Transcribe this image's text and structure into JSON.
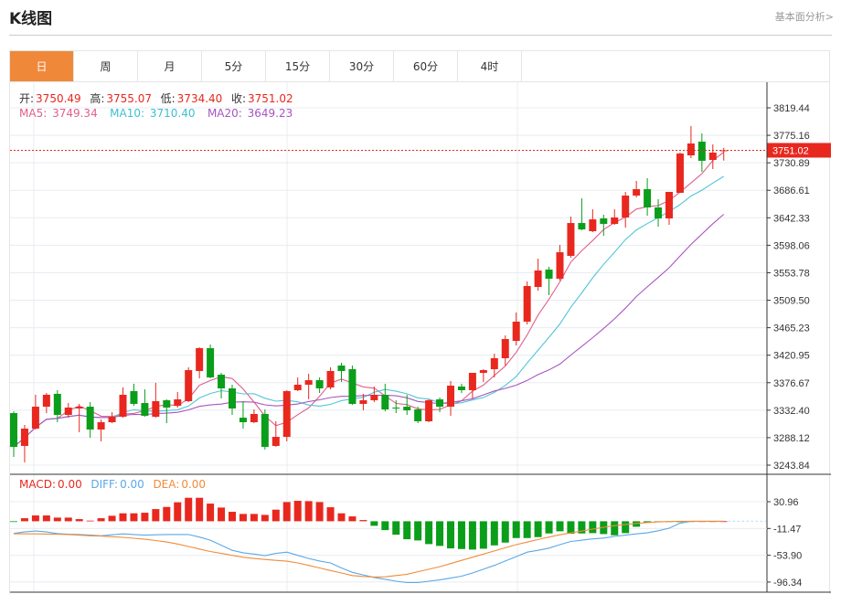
{
  "header": {
    "title": "K线图",
    "fundamental_link": "基本面分析>"
  },
  "tabs": [
    {
      "label": "日",
      "active": true
    },
    {
      "label": "周"
    },
    {
      "label": "月"
    },
    {
      "label": "5分"
    },
    {
      "label": "15分"
    },
    {
      "label": "30分"
    },
    {
      "label": "60分"
    },
    {
      "label": "4时"
    }
  ],
  "ohlc_info": {
    "open_label": "开:",
    "open": "3750.49",
    "high_label": "高:",
    "high": "3755.07",
    "low_label": "低:",
    "low": "3734.40",
    "close_label": "收:",
    "close": "3751.02"
  },
  "ma_info": {
    "ma5_label": "MA5:",
    "ma5": "3749.34",
    "ma10_label": "MA10:",
    "ma10": "3710.40",
    "ma20_label": "MA20:",
    "ma20": "3649.23"
  },
  "macd_info": {
    "macd_label": "MACD:",
    "macd": "0.00",
    "diff_label": "DIFF:",
    "diff": "0.00",
    "dea_label": "DEA:",
    "dea": "0.00"
  },
  "colors": {
    "up": "#e8281e",
    "down": "#0a9e1a",
    "ma5": "#e0608f",
    "ma10": "#4fc6d6",
    "ma20": "#a855c0",
    "diff": "#5aa8e8",
    "dea": "#f08c3a",
    "active_tab": "#f0883a"
  },
  "chart_data": [
    {
      "type": "candlestick",
      "y_ticks": [
        "3819.44",
        "3775.16",
        "3730.89",
        "3686.61",
        "3642.33",
        "3598.06",
        "3553.78",
        "3509.50",
        "3465.23",
        "3420.95",
        "3376.67",
        "3332.40",
        "3288.12",
        "3243.84"
      ],
      "ylim": [
        3243.84,
        3819.44
      ],
      "current_price": "3751.02",
      "ohlc": [
        [
          3327.7,
          3330.6,
          3257.1,
          3273.3
        ],
        [
          3274.8,
          3308.6,
          3248.3,
          3302.7
        ],
        [
          3302.7,
          3357.2,
          3301.2,
          3338.0
        ],
        [
          3338.0,
          3360.1,
          3327.7,
          3357.2
        ],
        [
          3358.7,
          3364.6,
          3313.0,
          3324.8
        ],
        [
          3324.8,
          3343.9,
          3320.3,
          3336.6
        ],
        [
          3335.1,
          3342.5,
          3296.8,
          3338.0
        ],
        [
          3338.0,
          3345.4,
          3288.0,
          3301.2
        ],
        [
          3301.2,
          3317.4,
          3282.1,
          3313.0
        ],
        [
          3313.0,
          3329.2,
          3311.5,
          3321.8
        ],
        [
          3321.8,
          3369.0,
          3320.3,
          3357.2
        ],
        [
          3363.1,
          3374.9,
          3339.5,
          3342.5
        ],
        [
          3343.9,
          3366.0,
          3321.8,
          3323.3
        ],
        [
          3321.8,
          3376.4,
          3320.3,
          3346.9
        ],
        [
          3348.4,
          3349.8,
          3311.5,
          3336.6
        ],
        [
          3339.5,
          3361.6,
          3336.6,
          3349.8
        ],
        [
          3346.9,
          3401.4,
          3345.4,
          3396.9
        ],
        [
          3395.5,
          3433.8,
          3383.7,
          3432.3
        ],
        [
          3432.3,
          3438.2,
          3383.7,
          3385.2
        ],
        [
          3389.6,
          3392.5,
          3351.3,
          3367.5
        ],
        [
          3367.5,
          3373.4,
          3324.8,
          3335.1
        ],
        [
          3320.3,
          3346.9,
          3302.7,
          3313.0
        ],
        [
          3313.0,
          3333.6,
          3311.5,
          3326.3
        ],
        [
          3326.3,
          3333.6,
          3268.9,
          3273.3
        ],
        [
          3274.8,
          3314.5,
          3273.3,
          3289.4
        ],
        [
          3289.4,
          3364.6,
          3282.1,
          3363.1
        ],
        [
          3364.6,
          3385.2,
          3363.1,
          3373.4
        ],
        [
          3373.4,
          3391.1,
          3349.8,
          3380.7
        ],
        [
          3380.7,
          3385.2,
          3360.1,
          3367.5
        ],
        [
          3369.0,
          3401.4,
          3366.0,
          3395.5
        ],
        [
          3404.3,
          3408.7,
          3377.8,
          3395.5
        ],
        [
          3398.4,
          3404.3,
          3341.0,
          3342.5
        ],
        [
          3342.5,
          3358.7,
          3332.1,
          3348.4
        ],
        [
          3348.4,
          3370.5,
          3345.4,
          3357.2
        ],
        [
          3357.2,
          3374.9,
          3330.6,
          3333.6
        ],
        [
          3336.6,
          3348.4,
          3327.7,
          3335.1
        ],
        [
          3338.0,
          3357.2,
          3324.8,
          3332.1
        ],
        [
          3333.6,
          3338.0,
          3311.5,
          3314.5
        ],
        [
          3314.5,
          3349.8,
          3313.0,
          3348.4
        ],
        [
          3349.8,
          3352.8,
          3329.2,
          3338.0
        ],
        [
          3338.0,
          3379.3,
          3323.3,
          3371.9
        ],
        [
          3370.5,
          3374.9,
          3360.1,
          3364.6
        ],
        [
          3364.6,
          3392.5,
          3351.3,
          3392.5
        ],
        [
          3392.5,
          3398.4,
          3377.8,
          3396.9
        ],
        [
          3398.4,
          3423.4,
          3385.2,
          3416.1
        ],
        [
          3416.1,
          3452.9,
          3404.3,
          3447.0
        ],
        [
          3444.0,
          3489.7,
          3436.7,
          3475.0
        ],
        [
          3475.0,
          3539.8,
          3470.5,
          3532.4
        ],
        [
          3530.9,
          3576.5,
          3525.0,
          3557.4
        ],
        [
          3558.9,
          3563.3,
          3517.7,
          3544.2
        ],
        [
          3544.2,
          3598.6,
          3541.2,
          3586.8
        ],
        [
          3581.0,
          3644.3,
          3578.0,
          3633.9
        ],
        [
          3633.9,
          3673.7,
          3622.2,
          3623.6
        ],
        [
          3620.7,
          3656.0,
          3619.2,
          3639.8
        ],
        [
          3641.3,
          3647.2,
          3613.3,
          3632.5
        ],
        [
          3632.5,
          3656.0,
          3631.0,
          3642.8
        ],
        [
          3642.8,
          3684.0,
          3626.6,
          3678.1
        ],
        [
          3678.1,
          3701.7,
          3675.2,
          3688.4
        ],
        [
          3688.4,
          3706.1,
          3645.7,
          3659.0
        ],
        [
          3659.0,
          3672.2,
          3628.0,
          3641.3
        ],
        [
          3641.3,
          3684.0,
          3631.0,
          3684.0
        ],
        [
          3682.5,
          3747.3,
          3682.5,
          3745.8
        ],
        [
          3742.9,
          3790.0,
          3738.5,
          3762.0
        ],
        [
          3765.0,
          3778.2,
          3716.4,
          3734.1
        ],
        [
          3735.5,
          3760.6,
          3720.8,
          3747.3
        ],
        [
          3750.49,
          3755.07,
          3734.4,
          3751.02
        ]
      ],
      "ma_periods": [
        5,
        10,
        20
      ]
    },
    {
      "type": "macd",
      "y_ticks": [
        "30.96",
        "-11.47",
        "-53.90",
        "-96.34"
      ],
      "ylim": [
        -105,
        45
      ],
      "histogram": [
        -0.3,
        4.8,
        9.2,
        9.2,
        5.8,
        5.8,
        3.4,
        1.0,
        4.8,
        8.7,
        12.6,
        12.6,
        13.5,
        19.3,
        22.7,
        30,
        37.2,
        37.2,
        28,
        21.7,
        15,
        11.6,
        11.6,
        10.1,
        18.4,
        30.4,
        32.4,
        31.9,
        30.4,
        22.2,
        12.6,
        7.7,
        1.9,
        -7.2,
        -14,
        -21.3,
        -28.5,
        -30.4,
        -36.2,
        -39.1,
        -43,
        -44,
        -44.9,
        -43.5,
        -38.2,
        -33.8,
        -26.6,
        -26.6,
        -25.1,
        -19.3,
        -15.9,
        -19.8,
        -19.3,
        -18.8,
        -20.3,
        -22.2,
        -18.8,
        -8.7,
        -2.4,
        -0.5,
        -0.5,
        -1.4,
        -0.5,
        0,
        0,
        0
      ],
      "diff": [
        -19.3,
        -17,
        -15.5,
        -17,
        -19.5,
        -20.5,
        -21,
        -22,
        -23,
        -21.5,
        -20,
        -21,
        -22,
        -21.5,
        -21,
        -21,
        -21,
        -25,
        -30,
        -38,
        -46,
        -50,
        -52,
        -54.6,
        -51,
        -49,
        -54,
        -59,
        -63,
        -66,
        -74,
        -81,
        -85,
        -89,
        -92,
        -95,
        -97,
        -97,
        -95,
        -93,
        -90,
        -87,
        -82,
        -76,
        -70,
        -63,
        -56,
        -49,
        -46,
        -42.5,
        -37,
        -32,
        -30,
        -28,
        -26.6,
        -24,
        -22,
        -20,
        -18.4,
        -15,
        -11,
        -3,
        0,
        0,
        0,
        0
      ],
      "dea": [
        -19.8,
        -20,
        -20,
        -20.2,
        -20.5,
        -21,
        -22,
        -23,
        -23.5,
        -24.5,
        -25.5,
        -27,
        -28.5,
        -30.5,
        -32.8,
        -36,
        -40,
        -44,
        -48,
        -51,
        -54,
        -57,
        -59,
        -60.5,
        -62,
        -63.3,
        -66,
        -70,
        -74,
        -78,
        -82,
        -86,
        -87.5,
        -88.4,
        -88,
        -86,
        -84,
        -80,
        -76,
        -72,
        -67,
        -62,
        -57,
        -52,
        -47,
        -42,
        -37,
        -33,
        -29,
        -25,
        -21.5,
        -18.4,
        -15.5,
        -12.5,
        -9.5,
        -7,
        -5,
        -3.5,
        -2,
        -1,
        -0.5,
        0,
        0,
        0,
        0,
        0
      ]
    }
  ]
}
